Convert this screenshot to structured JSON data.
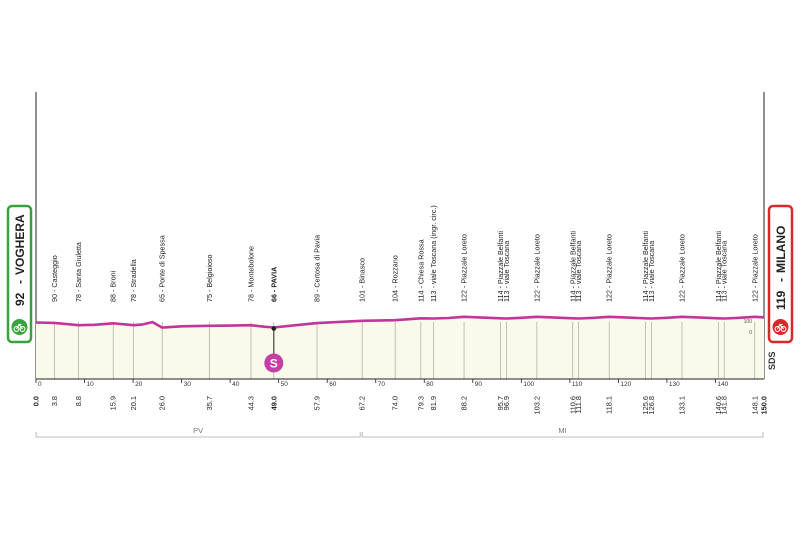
{
  "chart_data": {
    "type": "area",
    "title": "",
    "xlabel": "",
    "ylabel": "",
    "xlim": [
      0,
      150
    ],
    "start": {
      "altitude": "92",
      "name": "VOGHERA"
    },
    "finish": {
      "altitude": "119",
      "name": "MILANO"
    },
    "waypoints": [
      {
        "km": 3.8,
        "label": "90 - Casteggio"
      },
      {
        "km": 8.8,
        "label": "78 - Santa Giuletta"
      },
      {
        "km": 15.9,
        "label": "88 - Broni"
      },
      {
        "km": 20.1,
        "label": "78 - Stradella"
      },
      {
        "km": 26.0,
        "label": "65 - Ponte di Spessa"
      },
      {
        "km": 35.7,
        "label": "75 - Belgioioso"
      },
      {
        "km": 44.3,
        "label": "78 - Montebolone"
      },
      {
        "km": 49.0,
        "label": "66 - PAVIA",
        "bold": true
      },
      {
        "km": 57.9,
        "label": "89 - Certosa di Pavia"
      },
      {
        "km": 67.2,
        "label": "101 - Binasco"
      },
      {
        "km": 74.0,
        "label": "104 - Rozzano"
      },
      {
        "km": 79.3,
        "label": "114 - Chiesa Rossa"
      },
      {
        "km": 81.9,
        "label": "113 - viale Toscana (ingr. circ.)"
      },
      {
        "km": 88.2,
        "label": "122 - Piazzale Loreto"
      },
      {
        "km": 95.7,
        "label": "114 - Piazzale Belfanti"
      },
      {
        "km": 96.9,
        "label": "113 - viale Toscana"
      },
      {
        "km": 103.2,
        "label": "122 - Piazzale Loreto"
      },
      {
        "km": 110.6,
        "label": "114 - Piazzale Belfanti"
      },
      {
        "km": 111.8,
        "label": "113 - viale Toscana"
      },
      {
        "km": 118.1,
        "label": "122 - Piazzale Loreto"
      },
      {
        "km": 125.6,
        "label": "114 - Piazzale Belfanti"
      },
      {
        "km": 126.8,
        "label": "113 - viale Toscana"
      },
      {
        "km": 133.1,
        "label": "122 - Piazzale Loreto"
      },
      {
        "km": 140.6,
        "label": "114 - Piazzale Belfanti"
      },
      {
        "km": 141.8,
        "label": "113 - viale Toscana"
      },
      {
        "km": 148.1,
        "label": "122 - Piazzale Loreto"
      }
    ],
    "km_labels": [
      "0.0",
      "3.8",
      "8.8",
      "15.9",
      "20.1",
      "26.0",
      "35.7",
      "44.3",
      "49.0",
      "57.9",
      "67.2",
      "74.0",
      "79.3",
      "81.9",
      "88.2",
      "95.7",
      "96.9",
      "103.2",
      "110.6",
      "111.8",
      "118.1",
      "125.6",
      "126.8",
      "133.1",
      "140.6",
      "141.8",
      "148.1",
      "150.0"
    ],
    "km_axis_ticks": [
      0,
      10,
      20,
      30,
      40,
      50,
      60,
      70,
      80,
      90,
      100,
      110,
      120,
      130,
      140
    ],
    "sprint": {
      "km": 49.0,
      "symbol": "S"
    },
    "right_scale": {
      "top": "100",
      "bottom": "0"
    },
    "provinces": [
      {
        "code": "PV",
        "from": 0,
        "to": 67
      },
      {
        "code": "MI",
        "from": 67,
        "to": 150
      }
    ],
    "sds_label": "SDS",
    "profile": {
      "x": [
        0,
        3.8,
        8.8,
        12,
        15.9,
        20.1,
        22,
        24,
        26,
        30,
        35.7,
        40,
        44.3,
        47,
        49,
        52,
        57.9,
        62,
        67.2,
        74,
        79.3,
        81.9,
        85,
        88.2,
        92,
        95.7,
        96.9,
        100,
        103.2,
        107,
        110.6,
        111.8,
        115,
        118.1,
        122,
        125.6,
        126.8,
        130,
        133.1,
        137,
        140.6,
        141.8,
        145,
        148.1,
        150
      ],
      "y": [
        92,
        90,
        78,
        80,
        88,
        78,
        82,
        94,
        65,
        72,
        75,
        76,
        78,
        70,
        66,
        74,
        89,
        94,
        101,
        104,
        114,
        113,
        116,
        122,
        118,
        114,
        113,
        117,
        122,
        118,
        114,
        113,
        117,
        122,
        118,
        114,
        113,
        117,
        122,
        118,
        114,
        113,
        117,
        122,
        119
      ]
    },
    "colors": {
      "profile": "#c2359b",
      "fill": "#fafaea",
      "start_frame": "#38a33c",
      "finish_frame": "#d62a2a",
      "sprint": "#c53fa6",
      "text": "#222222",
      "grid": "#999999"
    }
  }
}
